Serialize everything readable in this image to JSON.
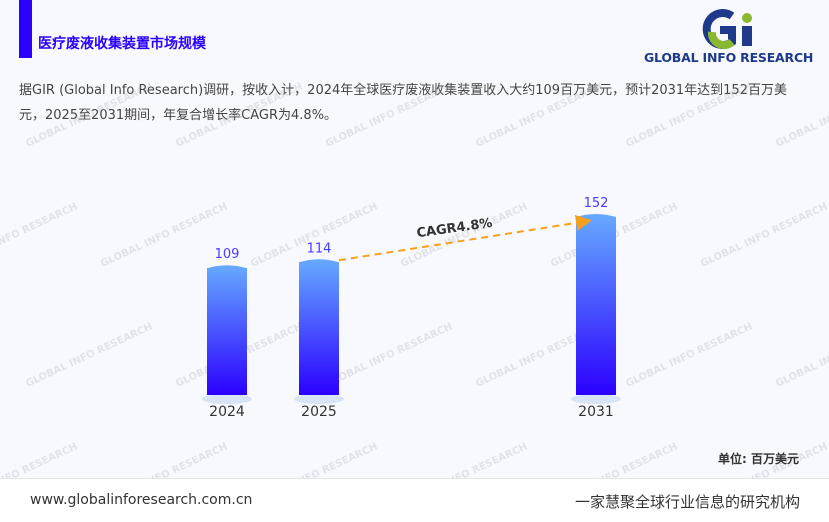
{
  "header": {
    "title": "医疗废液收集装置市场规模",
    "logo_text": "GLOBAL INFO RESEARCH"
  },
  "description": "据GIR (Global Info Research)调研，按收入计，2024年全球医疗废液收集装置收入大约109百万美元，预计2031年达到152百万美元，2025至2031期间，年复合增长率CAGR为4.8%。",
  "watermark": "GLOBAL INFO RESEARCH",
  "chart_data": {
    "type": "bar",
    "categories": [
      "2024",
      "2025",
      "2031"
    ],
    "values": [
      109,
      114,
      152
    ],
    "ylim": [
      0,
      152
    ],
    "annotation": "CAGR4.8%",
    "unit_label": "单位: 百万美元",
    "grid": false,
    "colors": {
      "bar_top": "#66aaff",
      "bar_bottom": "#2b00ff",
      "label": "#4a3cff",
      "arrow": "#f5a11c"
    }
  },
  "footer": {
    "url": "www.globalinforesearch.com.cn",
    "slogan": "一家慧聚全球行业信息的研究机构"
  }
}
